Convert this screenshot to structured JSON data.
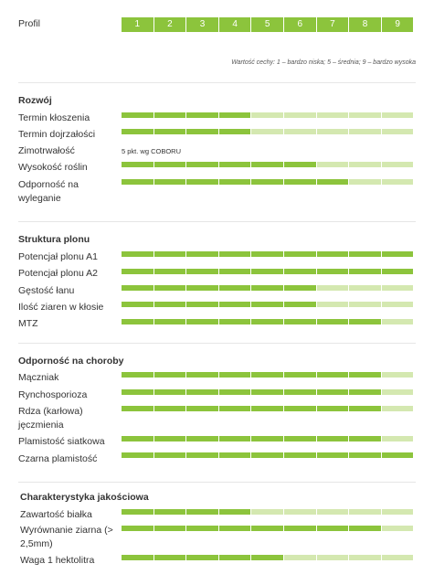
{
  "profile": {
    "label": "Profil",
    "scale": [
      1,
      2,
      3,
      4,
      5,
      6,
      7,
      8,
      9
    ]
  },
  "legend": "Wartość cechy: 1 – bardzo niska; 5 – średnia; 9 – bardzo wysoka",
  "sections": [
    {
      "title": "Rozwój",
      "rows": [
        {
          "label": "Termin kłoszenia",
          "value": 4
        },
        {
          "label": "Termin dojrzałości",
          "value": 4
        },
        {
          "label": "Zimotrwałość",
          "note": "5 pkt. wg COBORU"
        },
        {
          "label": "Wysokość roślin",
          "value": 6
        },
        {
          "label": "Odporność na wyleganie",
          "value": 7
        }
      ]
    },
    {
      "title": "Struktura plonu",
      "rows": [
        {
          "label": "Potencjał plonu A1",
          "value": 9
        },
        {
          "label": "Potencjał plonu A2",
          "value": 9
        },
        {
          "label": "Gęstość łanu",
          "value": 6
        },
        {
          "label": "Ilość ziaren w kłosie",
          "value": 6
        },
        {
          "label": "MTZ",
          "value": 8
        }
      ]
    },
    {
      "title": "Odporność na choroby",
      "rows": [
        {
          "label": "Mączniak",
          "value": 8
        },
        {
          "label": "Rynchosporioza",
          "value": 8
        },
        {
          "label": "Rdza (karłowa) jęczmienia",
          "value": 8
        },
        {
          "label": "Plamistość siatkowa",
          "value": 8
        },
        {
          "label": "Czarna plamistość",
          "value": 9
        }
      ]
    },
    {
      "title": "Charakterystyka jakościowa",
      "rows": [
        {
          "label": "Zawartość białka",
          "value": 4
        },
        {
          "label": "Wyrównanie ziarna (> 2,5mm)",
          "value": 8
        },
        {
          "label": "Waga 1 hektolitra",
          "value": 5
        }
      ]
    }
  ]
}
